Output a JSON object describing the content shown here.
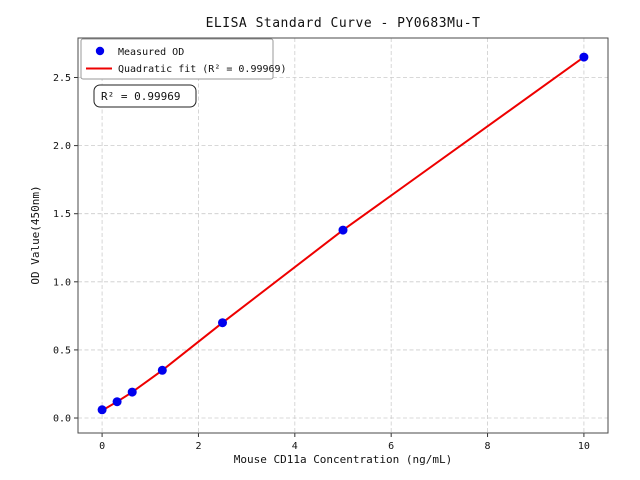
{
  "window": {
    "background_color": "#ffffff"
  },
  "chart_data": {
    "type": "scatter",
    "title": "ELISA Standard Curve - PY0683Mu-T",
    "xlabel": "Mouse CD11a Concentration (ng/mL)",
    "ylabel": "OD Value(450nm)",
    "x": [
      0,
      0.3125,
      0.625,
      1.25,
      2.5,
      5,
      10
    ],
    "y": [
      0.06,
      0.12,
      0.19,
      0.35,
      0.7,
      1.38,
      2.65
    ],
    "fit_values": [
      0.055,
      0.12,
      0.19,
      0.35,
      0.7,
      1.38,
      2.65
    ],
    "xlim": [
      -0.5,
      10.5
    ],
    "ylim": [
      -0.11,
      2.79
    ],
    "xticks": [
      0,
      2,
      4,
      6,
      8,
      10
    ],
    "xtick_labels": [
      "0",
      "2",
      "4",
      "6",
      "8",
      "10"
    ],
    "yticks": [
      0.0,
      0.5,
      1.0,
      1.5,
      2.0,
      2.5
    ],
    "ytick_labels": [
      "0.0",
      "0.5",
      "1.0",
      "1.5",
      "2.0",
      "2.5"
    ],
    "grid": true,
    "legend": {
      "position": "upper left",
      "entries": [
        {
          "label": "Measured OD",
          "marker": "circle",
          "color": "#0000ee"
        },
        {
          "label": "Quadratic fit (R² = 0.99969)",
          "marker": "line",
          "color": "#ee0000"
        }
      ]
    },
    "annotation": "R² = 0.99969"
  },
  "colors": {
    "point": "#0000ee",
    "fit_line": "#ee0000",
    "grid": "#cccccc",
    "spine": "#4a4a4a",
    "tick": "#333333",
    "legend_border": "#999999",
    "annotation_border": "#222222"
  }
}
